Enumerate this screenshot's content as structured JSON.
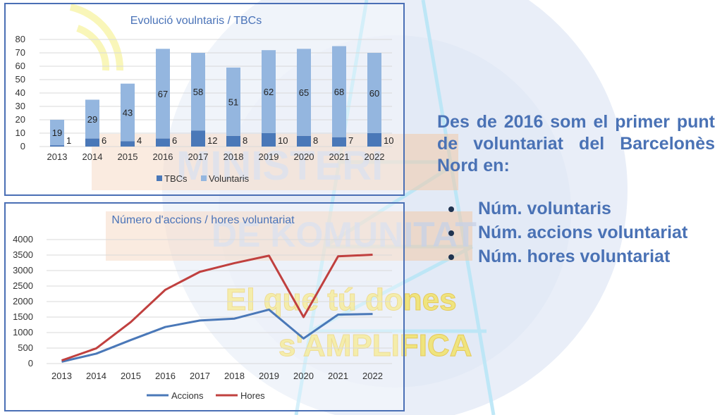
{
  "side": {
    "paragraph": "Des de 2016 som el primer punt de voluntariat del Barcelonès Nord en:",
    "items": [
      "Núm. voluntaris",
      "Núm. accions voluntariat",
      "Núm. hores voluntariat"
    ]
  },
  "watermark": {
    "lines": [
      "MINISTERI",
      "DE KOMUNITAT",
      "El que tú dones",
      "s'AMPLIFICA"
    ]
  },
  "colors": {
    "tbcs": "#4a78b8",
    "voluntaris": "#94b6df",
    "accions": "#4a78b8",
    "hores": "#c0403f",
    "frame": "#4a6fb5"
  },
  "chart_data": [
    {
      "type": "bar",
      "title": "Evolució voulntaris / TBCs",
      "categories": [
        "2013",
        "2014",
        "2015",
        "2016",
        "2017",
        "2018",
        "2019",
        "2020",
        "2021",
        "2022"
      ],
      "series": [
        {
          "name": "TBCs",
          "values": [
            1,
            6,
            4,
            6,
            12,
            8,
            10,
            8,
            7,
            10
          ]
        },
        {
          "name": "Voluntaris",
          "values": [
            19,
            29,
            43,
            67,
            58,
            51,
            62,
            65,
            68,
            60
          ]
        }
      ],
      "stacked": true,
      "ylim": [
        0,
        80
      ],
      "yticks": [
        0,
        10,
        20,
        30,
        40,
        50,
        60,
        70,
        80
      ],
      "legend": "bottom"
    },
    {
      "type": "line",
      "title": "Número d'accions / hores voluntariat",
      "categories": [
        "2013",
        "2014",
        "2015",
        "2016",
        "2017",
        "2018",
        "2019",
        "2020",
        "2021",
        "2022"
      ],
      "series": [
        {
          "name": "Accions",
          "values": [
            60,
            320,
            760,
            1180,
            1390,
            1450,
            1740,
            810,
            1580,
            1600
          ]
        },
        {
          "name": "Hores",
          "values": [
            100,
            490,
            1340,
            2380,
            2960,
            3240,
            3480,
            1500,
            3460,
            3510
          ]
        }
      ],
      "ylim": [
        0,
        4000
      ],
      "yticks": [
        0,
        500,
        1000,
        1500,
        2000,
        2500,
        3000,
        3500,
        4000
      ],
      "legend": "bottom"
    }
  ]
}
